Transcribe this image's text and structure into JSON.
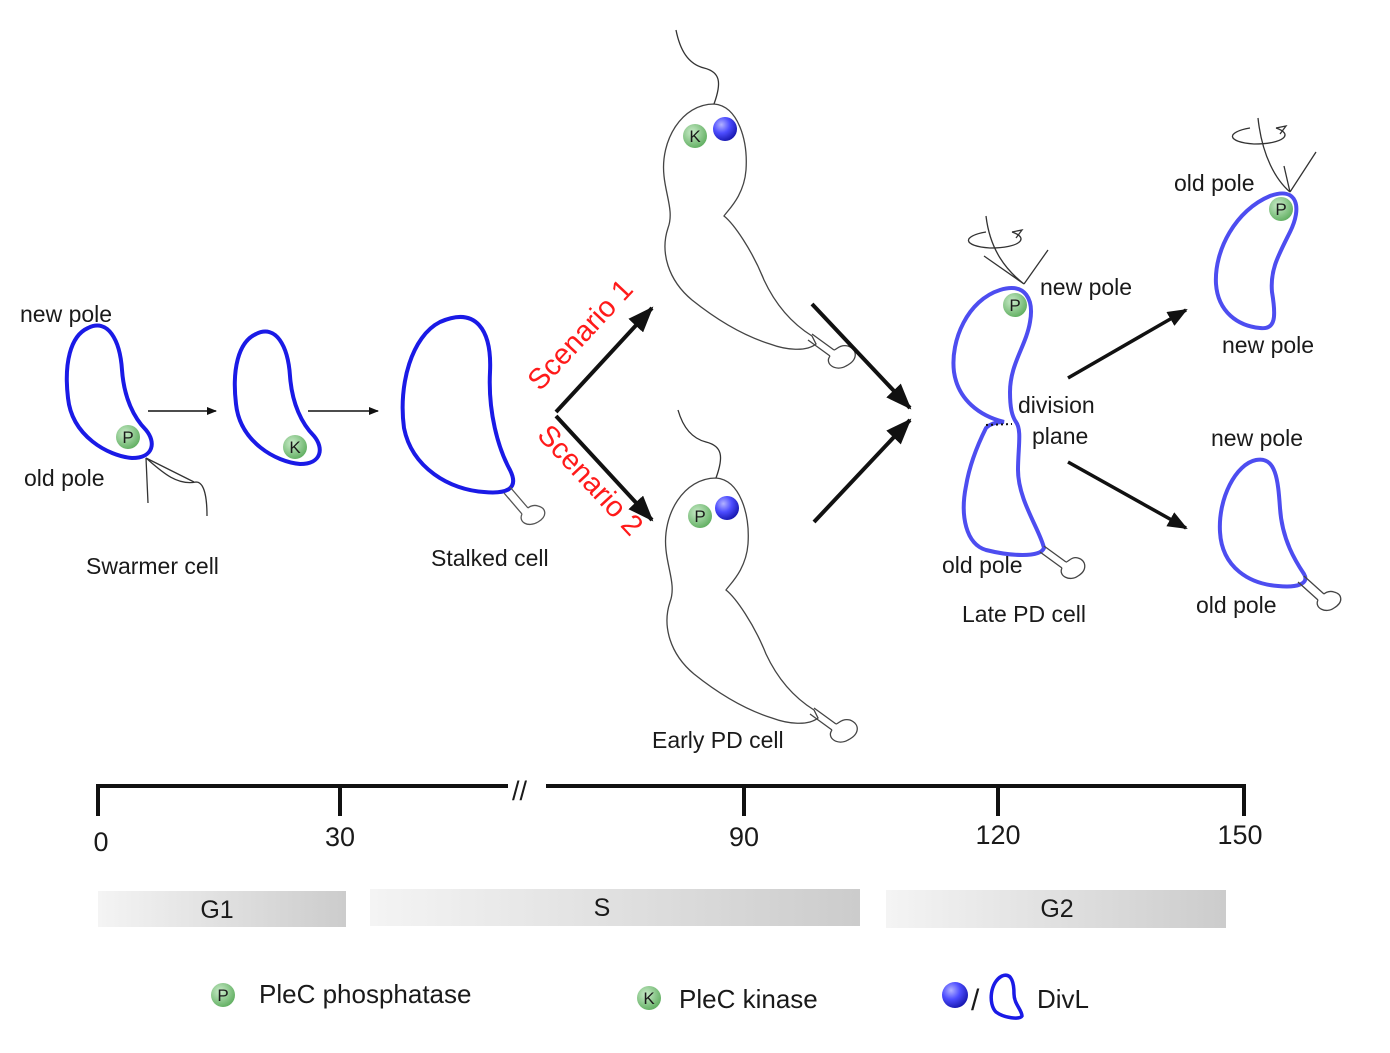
{
  "diagram": {
    "labels": {
      "swarmer_new_pole": "new pole",
      "swarmer_old_pole": "old pole",
      "swarmer_cell": "Swarmer cell",
      "stalked_cell": "Stalked cell",
      "scenario1": "Scenario 1",
      "scenario2": "Scenario 2",
      "early_pd_cell": "Early PD cell",
      "late_new_pole": "new pole",
      "division_plane_1": "division",
      "division_plane_2": "plane",
      "late_old_pole": "old pole",
      "late_pd_cell": "Late PD cell",
      "daughter1_old_pole": "old pole",
      "daughter1_new_pole": "new pole",
      "daughter2_new_pole": "new pole",
      "daughter2_old_pole": "old pole"
    },
    "badges": {
      "phosphatase": "P",
      "kinase": "K"
    },
    "timeline": {
      "break_mark": "//",
      "ticks": [
        "0",
        "30",
        "90",
        "120",
        "150"
      ],
      "phases": [
        "G1",
        "S",
        "G2"
      ]
    },
    "legend": {
      "phosphatase": "PleC phosphatase",
      "kinase": "PleC kinase",
      "divl_separator": "/",
      "divl": "DivL"
    },
    "colors": {
      "divl_blue": "#1a1ae6",
      "late_blue": "#4d4df0",
      "badge_green": "#7fc47f",
      "scenario_red": "#ff1a1a"
    }
  }
}
